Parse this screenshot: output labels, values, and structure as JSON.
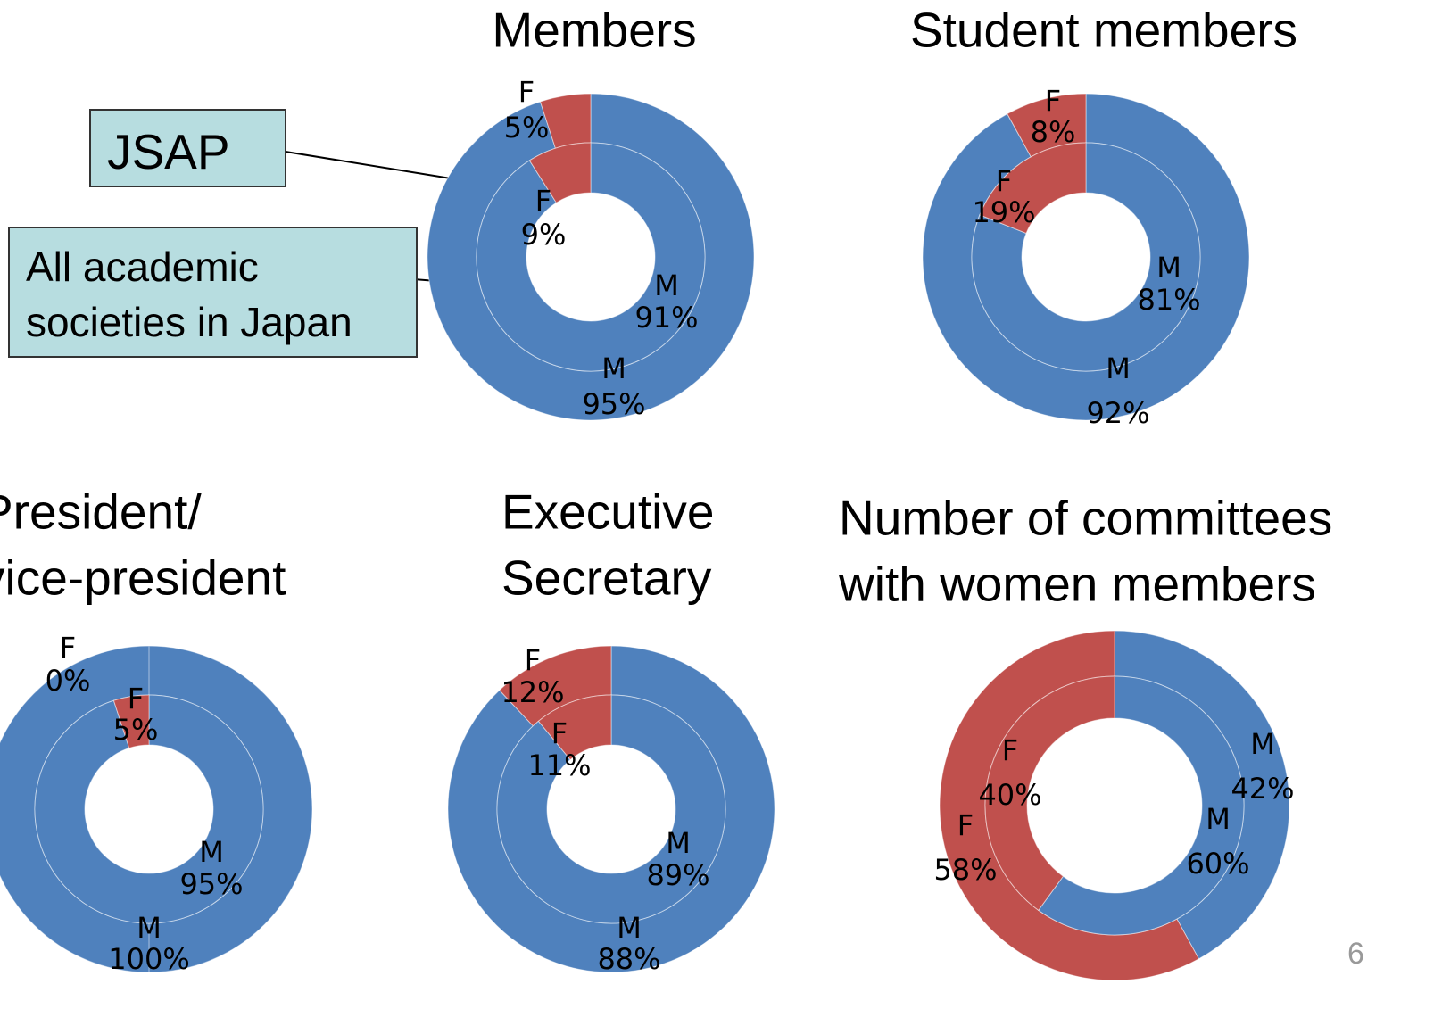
{
  "chart_data": [
    {
      "type": "donut",
      "title": [
        "Members"
      ],
      "categories": [
        "M",
        "F"
      ],
      "colors": [
        "#4f81bd",
        "#c0504d"
      ],
      "series": [
        {
          "name": "JSAP",
          "values": [
            95,
            5
          ],
          "value_labels": [
            "95%",
            "5%"
          ]
        },
        {
          "name": "All academic societies in Japan",
          "values": [
            91,
            9
          ],
          "value_labels": [
            "91%",
            "9%"
          ]
        }
      ]
    },
    {
      "type": "donut",
      "title": [
        "Student members"
      ],
      "categories": [
        "M",
        "F"
      ],
      "colors": [
        "#4f81bd",
        "#c0504d"
      ],
      "series": [
        {
          "values": [
            92,
            8
          ],
          "value_labels": [
            "92%",
            "8%"
          ]
        },
        {
          "values": [
            81,
            19
          ],
          "value_labels": [
            "81%",
            "19%"
          ]
        }
      ]
    },
    {
      "type": "donut",
      "title": [
        "President/",
        "vice-president"
      ],
      "categories": [
        "M",
        "F"
      ],
      "colors": [
        "#4f81bd",
        "#c0504d"
      ],
      "series": [
        {
          "values": [
            100,
            0
          ],
          "value_labels": [
            "100%",
            "0%"
          ]
        },
        {
          "values": [
            95,
            5
          ],
          "value_labels": [
            "95%",
            "5%"
          ]
        }
      ]
    },
    {
      "type": "donut",
      "title": [
        "Executive",
        "Secretary"
      ],
      "categories": [
        "M",
        "F"
      ],
      "colors": [
        "#4f81bd",
        "#c0504d"
      ],
      "series": [
        {
          "values": [
            88,
            12
          ],
          "value_labels": [
            "88%",
            "12%"
          ]
        },
        {
          "values": [
            89,
            11
          ],
          "value_labels": [
            "89%",
            "11%"
          ]
        }
      ]
    },
    {
      "type": "donut",
      "title": [
        "Number of committees",
        "with women members"
      ],
      "categories": [
        "M",
        "F"
      ],
      "colors": [
        "#4f81bd",
        "#c0504d"
      ],
      "series": [
        {
          "values": [
            42,
            58
          ],
          "value_labels": [
            "42%",
            "58%"
          ]
        },
        {
          "values": [
            60,
            40
          ],
          "value_labels": [
            "60%",
            "40%"
          ]
        }
      ]
    }
  ],
  "page_number": 6
}
